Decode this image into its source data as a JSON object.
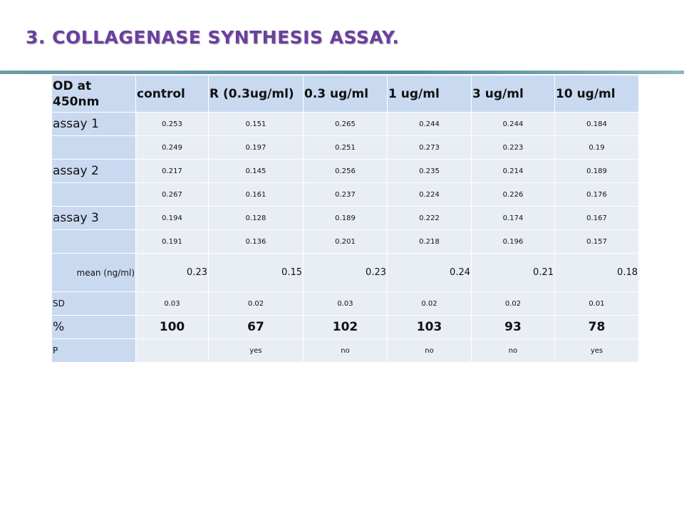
{
  "title": "3. COLLAGENASE  SYNTHESIS ASSAY.",
  "table": {
    "header": [
      "OD at 450nm",
      "control",
      "R (0.3ug/ml)",
      "0.3 ug/ml",
      "1 ug/ml",
      "3 ug/ml",
      "10 ug/ml"
    ],
    "rows": [
      [
        "assay 1",
        "0.253",
        "0.151",
        "0.265",
        "0.244",
        "0.244",
        "0.184"
      ],
      [
        null,
        "0.249",
        "0.197",
        "0.251",
        "0.273",
        "0.223",
        "0.19"
      ],
      [
        "assay 2",
        "0.217",
        "0.145",
        "0.256",
        "0.235",
        "0.214",
        "0.189"
      ],
      [
        null,
        "0.267",
        "0.161",
        "0.237",
        "0.224",
        "0.226",
        "0.176"
      ],
      [
        "assay 3",
        "0.194",
        "0.128",
        "0.189",
        "0.222",
        "0.174",
        "0.167"
      ],
      [
        null,
        "0.191",
        "0.136",
        "0.201",
        "0.218",
        "0.196",
        "0.157"
      ],
      [
        "mean (ng/ml)",
        "0.23",
        "0.15",
        "0.23",
        "0.24",
        "0.21",
        "0.18"
      ],
      [
        "SD",
        "0.03",
        "0.02",
        "0.03",
        "0.02",
        "0.02",
        "0.01"
      ],
      [
        "%",
        "100",
        "67",
        "102",
        "103",
        "93",
        "78"
      ],
      [
        "P",
        null,
        "yes",
        "no",
        "no",
        "no",
        "yes"
      ]
    ]
  }
}
